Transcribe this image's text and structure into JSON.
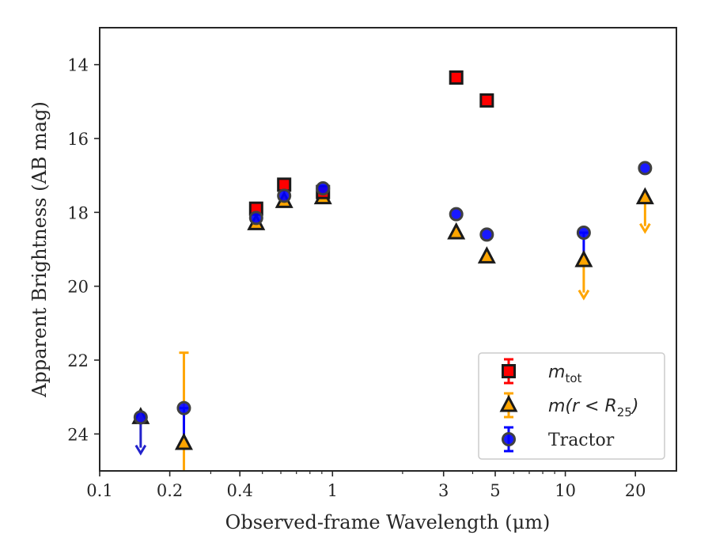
{
  "chart_data": {
    "type": "scatter",
    "title": "",
    "xlabel": "Observed-frame Wavelength (μm)",
    "ylabel": "Apparent Brightness (AB mag)",
    "xscale": "log",
    "xlim": [
      0.1,
      30
    ],
    "ylim": [
      25,
      13
    ],
    "y_inverted": true,
    "x_ticks": [
      0.1,
      0.2,
      0.4,
      1,
      3,
      5,
      10,
      20
    ],
    "x_tick_labels": [
      "0.1",
      "0.2",
      "0.4",
      "1",
      "3",
      "5",
      "10",
      "20"
    ],
    "y_ticks": [
      14,
      16,
      18,
      20,
      22,
      24
    ],
    "y_tick_labels": [
      "14",
      "16",
      "18",
      "20",
      "22",
      "24"
    ],
    "grid": false,
    "legend_position": "bottom-right",
    "series": [
      {
        "name": "m_tot",
        "legend_label": "m",
        "legend_sub": "tot",
        "marker": "square",
        "color": "#ff0000",
        "edge_color": "#1a1a1a",
        "points": [
          {
            "x": 0.47,
            "y": 17.9
          },
          {
            "x": 0.62,
            "y": 17.25
          },
          {
            "x": 0.91,
            "y": 17.45
          },
          {
            "x": 3.4,
            "y": 14.35
          },
          {
            "x": 4.6,
            "y": 14.97
          }
        ]
      },
      {
        "name": "m(r < R25)",
        "legend_label": "m(r < R",
        "legend_sub": "25",
        "legend_suffix": ")",
        "marker": "triangle",
        "color": "#ffa500",
        "edge_color": "#1a1a1a",
        "points": [
          {
            "x": 0.15,
            "y": 23.55,
            "upper_limit": true,
            "limit_color": "#2222cc",
            "limit_to": 24.5
          },
          {
            "x": 0.23,
            "y": 24.25,
            "yerr_low": 21.8,
            "yerr_high": 25.2
          },
          {
            "x": 0.47,
            "y": 18.3
          },
          {
            "x": 0.62,
            "y": 17.7
          },
          {
            "x": 0.91,
            "y": 17.6
          },
          {
            "x": 3.4,
            "y": 18.55
          },
          {
            "x": 4.6,
            "y": 19.2
          },
          {
            "x": 12.0,
            "y": 19.3,
            "upper_limit": true,
            "limit_color": "#ffa500",
            "limit_to": 20.3
          },
          {
            "x": 22.0,
            "y": 17.6,
            "upper_limit": true,
            "limit_color": "#ffa500",
            "limit_to": 18.5
          }
        ]
      },
      {
        "name": "Tractor",
        "legend_label": "Tractor",
        "marker": "circle",
        "color": "#0000ff",
        "edge_color": "#404040",
        "points": [
          {
            "x": 0.15,
            "y": 23.55
          },
          {
            "x": 0.23,
            "y": 23.3,
            "yerr_low": 23.3,
            "yerr_high": 24.25
          },
          {
            "x": 0.47,
            "y": 18.15
          },
          {
            "x": 0.62,
            "y": 17.55
          },
          {
            "x": 0.91,
            "y": 17.35
          },
          {
            "x": 3.4,
            "y": 18.05
          },
          {
            "x": 4.6,
            "y": 18.6
          },
          {
            "x": 12.0,
            "y": 18.55,
            "yerr_low": 18.55,
            "yerr_high": 19.3
          },
          {
            "x": 22.0,
            "y": 16.8
          }
        ]
      }
    ],
    "legend_colors": {
      "m_tot": "#ff0000",
      "m(r < R25)": "#ffa500",
      "Tractor": "#0000ff"
    }
  }
}
